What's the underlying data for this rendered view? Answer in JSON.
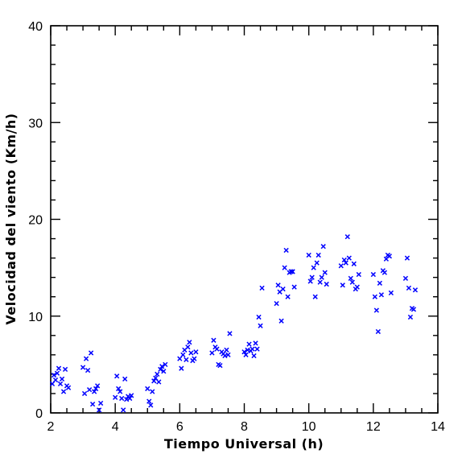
{
  "chart_data": {
    "type": "scatter",
    "xlabel": "Tiempo Universal (h)",
    "ylabel": "Velocidad del viento (Km/h)",
    "xlim": [
      2,
      14
    ],
    "ylim": [
      0,
      40
    ],
    "x_ticks": [
      2,
      4,
      6,
      8,
      10,
      12,
      14
    ],
    "y_ticks": [
      0,
      10,
      20,
      30,
      40
    ],
    "x_tick_labels": [
      "2",
      "4",
      "6",
      "8",
      "10",
      "12",
      "14"
    ],
    "y_tick_labels": [
      "0",
      "10",
      "20",
      "30",
      "40"
    ],
    "marker": "x",
    "marker_color": "#0000ff",
    "grid": false,
    "series": [
      {
        "points": [
          [
            2.05,
            3.0
          ],
          [
            2.1,
            3.9
          ],
          [
            2.15,
            3.4
          ],
          [
            2.2,
            4.1
          ],
          [
            2.25,
            4.6
          ],
          [
            2.3,
            3.0
          ],
          [
            2.35,
            3.5
          ],
          [
            2.4,
            2.2
          ],
          [
            2.45,
            4.5
          ],
          [
            2.5,
            2.8
          ],
          [
            2.55,
            2.6
          ],
          [
            3.0,
            4.7
          ],
          [
            3.05,
            2.0
          ],
          [
            3.1,
            5.6
          ],
          [
            3.15,
            4.4
          ],
          [
            3.2,
            2.4
          ],
          [
            3.25,
            6.2
          ],
          [
            3.3,
            0.9
          ],
          [
            3.35,
            2.2
          ],
          [
            3.4,
            2.5
          ],
          [
            3.45,
            2.8
          ],
          [
            3.5,
            0.3
          ],
          [
            3.55,
            1.0
          ],
          [
            4.0,
            1.6
          ],
          [
            4.05,
            3.8
          ],
          [
            4.1,
            2.5
          ],
          [
            4.15,
            2.2
          ],
          [
            4.2,
            1.5
          ],
          [
            4.25,
            0.3
          ],
          [
            4.3,
            3.5
          ],
          [
            4.35,
            1.4
          ],
          [
            4.4,
            1.7
          ],
          [
            4.45,
            1.5
          ],
          [
            4.5,
            1.8
          ],
          [
            5.0,
            2.5
          ],
          [
            5.05,
            1.2
          ],
          [
            5.1,
            0.8
          ],
          [
            5.15,
            2.2
          ],
          [
            5.2,
            3.3
          ],
          [
            5.25,
            3.6
          ],
          [
            5.3,
            4.0
          ],
          [
            5.35,
            3.2
          ],
          [
            5.4,
            4.5
          ],
          [
            5.45,
            4.8
          ],
          [
            5.5,
            4.3
          ],
          [
            5.55,
            5.0
          ],
          [
            6.0,
            5.6
          ],
          [
            6.05,
            4.6
          ],
          [
            6.1,
            6.0
          ],
          [
            6.15,
            6.5
          ],
          [
            6.2,
            5.5
          ],
          [
            6.25,
            6.8
          ],
          [
            6.3,
            7.3
          ],
          [
            6.35,
            6.2
          ],
          [
            6.4,
            5.4
          ],
          [
            6.45,
            5.6
          ],
          [
            6.5,
            6.3
          ],
          [
            7.0,
            6.2
          ],
          [
            7.05,
            7.5
          ],
          [
            7.1,
            6.8
          ],
          [
            7.15,
            6.6
          ],
          [
            7.2,
            5.0
          ],
          [
            7.25,
            4.9
          ],
          [
            7.3,
            6.3
          ],
          [
            7.35,
            6.1
          ],
          [
            7.4,
            5.9
          ],
          [
            7.45,
            6.5
          ],
          [
            7.5,
            6.0
          ],
          [
            7.55,
            8.2
          ],
          [
            8.0,
            6.3
          ],
          [
            8.05,
            6.0
          ],
          [
            8.1,
            6.5
          ],
          [
            8.15,
            7.1
          ],
          [
            8.2,
            6.4
          ],
          [
            8.25,
            6.6
          ],
          [
            8.3,
            5.9
          ],
          [
            8.35,
            7.2
          ],
          [
            8.4,
            6.6
          ],
          [
            8.45,
            9.9
          ],
          [
            8.5,
            9.0
          ],
          [
            8.55,
            12.9
          ],
          [
            9.0,
            11.3
          ],
          [
            9.05,
            13.2
          ],
          [
            9.1,
            12.5
          ],
          [
            9.15,
            9.5
          ],
          [
            9.2,
            12.8
          ],
          [
            9.25,
            15.0
          ],
          [
            9.3,
            16.8
          ],
          [
            9.35,
            12.0
          ],
          [
            9.4,
            14.5
          ],
          [
            9.45,
            14.6
          ],
          [
            9.5,
            14.6
          ],
          [
            9.55,
            13.0
          ],
          [
            10.0,
            16.3
          ],
          [
            10.05,
            13.6
          ],
          [
            10.1,
            14.0
          ],
          [
            10.15,
            15.0
          ],
          [
            10.2,
            12.0
          ],
          [
            10.25,
            15.5
          ],
          [
            10.3,
            16.3
          ],
          [
            10.35,
            13.5
          ],
          [
            10.4,
            14.0
          ],
          [
            10.45,
            17.2
          ],
          [
            10.5,
            14.5
          ],
          [
            10.55,
            13.3
          ],
          [
            11.0,
            15.2
          ],
          [
            11.05,
            13.2
          ],
          [
            11.1,
            15.8
          ],
          [
            11.15,
            15.5
          ],
          [
            11.2,
            18.2
          ],
          [
            11.25,
            16.0
          ],
          [
            11.3,
            13.9
          ],
          [
            11.35,
            13.5
          ],
          [
            11.4,
            15.4
          ],
          [
            11.45,
            12.8
          ],
          [
            11.5,
            13.0
          ],
          [
            11.55,
            14.3
          ],
          [
            12.0,
            14.3
          ],
          [
            12.05,
            12.0
          ],
          [
            12.1,
            10.6
          ],
          [
            12.15,
            8.4
          ],
          [
            12.2,
            13.4
          ],
          [
            12.25,
            12.2
          ],
          [
            12.3,
            14.7
          ],
          [
            12.35,
            14.5
          ],
          [
            12.4,
            15.9
          ],
          [
            12.45,
            16.3
          ],
          [
            12.5,
            16.2
          ],
          [
            12.55,
            12.4
          ],
          [
            13.0,
            13.9
          ],
          [
            13.05,
            16.0
          ],
          [
            13.1,
            12.9
          ],
          [
            13.15,
            9.9
          ],
          [
            13.2,
            10.8
          ],
          [
            13.25,
            10.7
          ],
          [
            13.3,
            12.7
          ]
        ]
      }
    ]
  }
}
